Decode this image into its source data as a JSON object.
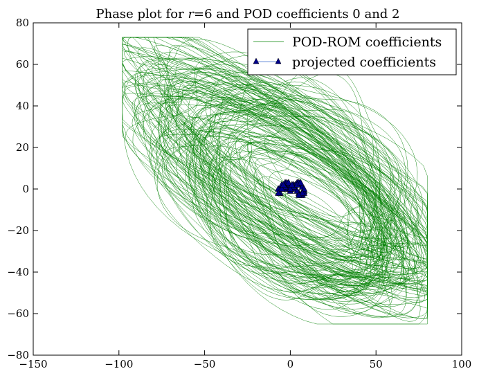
{
  "chart_data": {
    "type": "line",
    "title": "Phase plot for r=6 and POD coefficients 0 and 2",
    "title_parts": {
      "prefix": "Phase plot for ",
      "math_r": "r",
      "equals": "=",
      "math_6": "6",
      "middle": " and POD coefficients ",
      "math_0": "0",
      "and": " and ",
      "math_2": "2"
    },
    "xlabel": "",
    "ylabel": "",
    "xlim": [
      -150,
      100
    ],
    "ylim": [
      -80,
      80
    ],
    "x_ticks": [
      -150,
      -100,
      -50,
      0,
      50,
      100
    ],
    "y_ticks": [
      -80,
      -60,
      -40,
      -20,
      0,
      20,
      40,
      60,
      80
    ],
    "x_tick_labels": [
      "−150",
      "−100",
      "−50",
      "0",
      "50",
      "100"
    ],
    "y_tick_labels": [
      "−80",
      "−60",
      "−40",
      "−20",
      "0",
      "20",
      "40",
      "60",
      "80"
    ],
    "grid": false,
    "legend_position": "top-right",
    "series": [
      {
        "name": "POD-ROM coefficients",
        "color": "#008000",
        "style": "thin-line",
        "description_extent": {
          "x_range": [
            -98,
            80
          ],
          "y_range": [
            -65,
            73
          ]
        },
        "cycles": [
          {
            "a": 62,
            "b": 28,
            "ang": -27,
            "cx": -2,
            "cy": 6
          },
          {
            "a": 80,
            "b": 22,
            "ang": -30,
            "cx": -10,
            "cy": 15
          },
          {
            "a": 70,
            "b": 34,
            "ang": -24,
            "cx": 0,
            "cy": 0
          },
          {
            "a": 88,
            "b": 18,
            "ang": -32,
            "cx": -15,
            "cy": 20
          },
          {
            "a": 55,
            "b": 38,
            "ang": -35,
            "cx": 5,
            "cy": -5
          },
          {
            "a": 75,
            "b": 30,
            "ang": -22,
            "cx": 8,
            "cy": -8
          },
          {
            "a": 65,
            "b": 24,
            "ang": -28,
            "cx": 10,
            "cy": -12
          },
          {
            "a": 95,
            "b": 26,
            "ang": -26,
            "cx": -8,
            "cy": 8
          },
          {
            "a": 50,
            "b": 20,
            "ang": -40,
            "cx": 20,
            "cy": -15
          },
          {
            "a": 85,
            "b": 36,
            "ang": -29,
            "cx": -5,
            "cy": 3
          }
        ]
      },
      {
        "name": "projected coefficients",
        "color": "#00008b",
        "marker": "triangle",
        "line_color": "#6a8fd8",
        "points": [
          [
            -6,
            -2
          ],
          [
            -5,
            1
          ],
          [
            -3,
            3
          ],
          [
            -1,
            2
          ],
          [
            0,
            0
          ],
          [
            2,
            2
          ],
          [
            4,
            3
          ],
          [
            6,
            2
          ],
          [
            8,
            -1
          ],
          [
            7,
            -3
          ],
          [
            5,
            -2
          ],
          [
            3,
            0
          ],
          [
            1,
            1
          ],
          [
            0,
            -1
          ],
          [
            -2,
            0
          ],
          [
            -4,
            0
          ],
          [
            -6,
            -2
          ],
          [
            -7,
            0
          ],
          [
            -5,
            2
          ],
          [
            -2,
            3
          ],
          [
            0,
            1
          ],
          [
            3,
            2
          ],
          [
            5,
            3
          ],
          [
            7,
            1
          ],
          [
            8,
            -2
          ],
          [
            6,
            -3
          ],
          [
            4,
            -1
          ],
          [
            2,
            1
          ],
          [
            0,
            0
          ],
          [
            -3,
            1
          ],
          [
            -5,
            0
          ],
          [
            -7,
            -2
          ],
          [
            -4,
            2
          ],
          [
            -1,
            3
          ],
          [
            1,
            2
          ],
          [
            4,
            2
          ],
          [
            6,
            3
          ],
          [
            8,
            0
          ],
          [
            7,
            -2
          ],
          [
            5,
            -3
          ]
        ]
      }
    ]
  }
}
